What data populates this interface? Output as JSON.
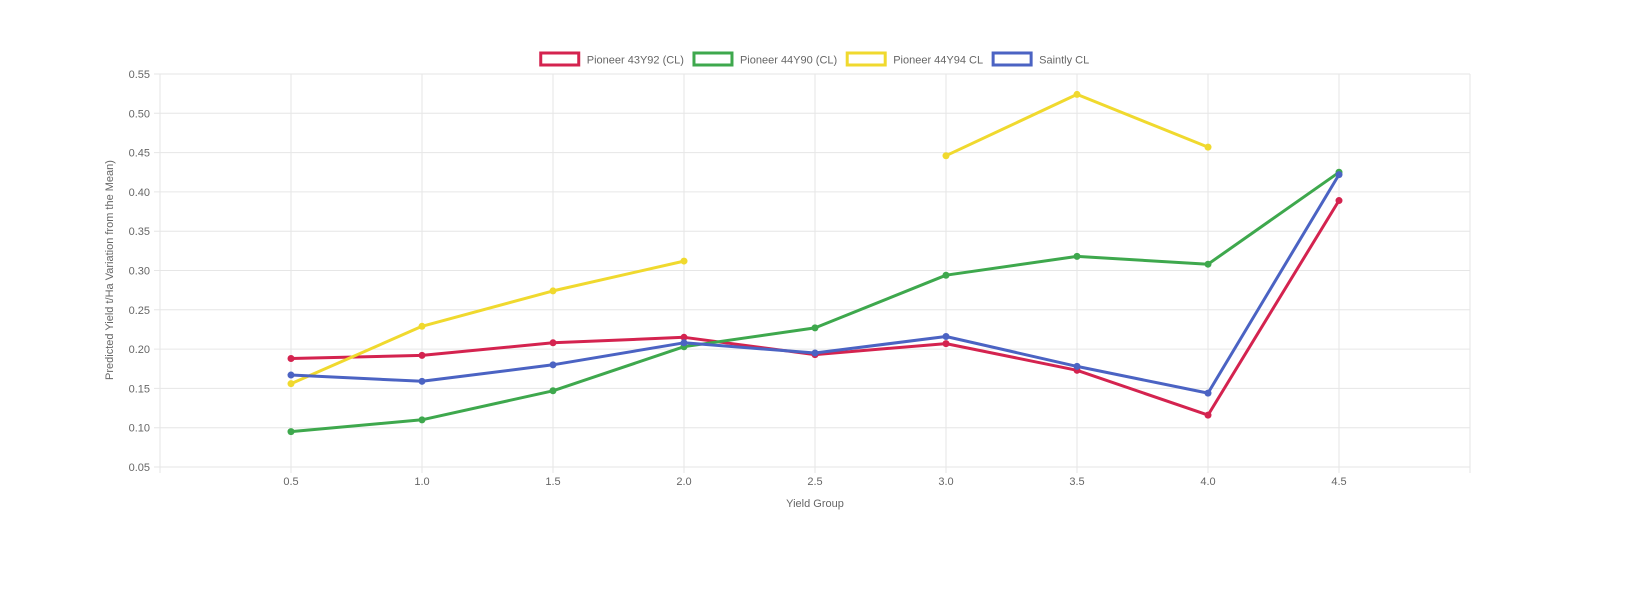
{
  "chart_data": {
    "type": "line",
    "title": "",
    "xlabel": "Yield Group",
    "ylabel": "Predicted Yield t/Ha  Variation from the Mean)",
    "x_ticks": [
      "0.5",
      "1.0",
      "1.5",
      "2.0",
      "2.5",
      "3.0",
      "3.5",
      "4.0",
      "4.5"
    ],
    "x": [
      0.5,
      1.0,
      1.5,
      2.0,
      2.5,
      3.0,
      3.5,
      4.0,
      4.5
    ],
    "xlim": [
      0,
      5
    ],
    "ylim": [
      0.05,
      0.55
    ],
    "y_ticks": [
      "0.05",
      "0.10",
      "0.15",
      "0.20",
      "0.25",
      "0.30",
      "0.35",
      "0.40",
      "0.45",
      "0.50",
      "0.55"
    ],
    "grid": true,
    "legend_position": "top-center",
    "series": [
      {
        "name": "Pioneer 43Y92 (CL)",
        "color": "#d4234f",
        "values": [
          0.188,
          0.192,
          0.208,
          0.215,
          0.193,
          0.207,
          0.173,
          0.116,
          0.389
        ]
      },
      {
        "name": "Pioneer 44Y90 (CL)",
        "color": "#3ea84d",
        "values": [
          0.095,
          0.11,
          0.147,
          0.203,
          0.227,
          0.294,
          0.318,
          0.308,
          0.425
        ]
      },
      {
        "name": "Pioneer 44Y94 CL",
        "color": "#f0d92e",
        "values": [
          0.156,
          0.229,
          0.274,
          0.312,
          null,
          0.446,
          0.524,
          0.457,
          null
        ]
      },
      {
        "name": "Saintly CL",
        "color": "#4b63c3",
        "values": [
          0.167,
          0.159,
          0.18,
          0.208,
          0.195,
          0.216,
          0.178,
          0.144,
          0.422
        ]
      }
    ]
  }
}
